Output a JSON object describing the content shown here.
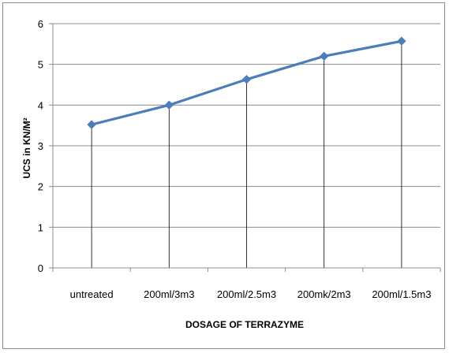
{
  "chart_data": {
    "type": "line",
    "categories": [
      "untreated",
      "200ml/3m3",
      "200ml/2.5m3",
      "200mk/2m3",
      "200ml/1.5m3"
    ],
    "series": [
      {
        "values": [
          3.52,
          4.0,
          4.63,
          5.2,
          5.57
        ]
      }
    ],
    "xlabel": "DOSAGE OF TERRAZYME",
    "ylabel": "UCS in KN/M²",
    "ylim": [
      0,
      6
    ],
    "yticks": [
      "0",
      "1",
      "2",
      "3",
      "4",
      "5",
      "6"
    ],
    "grid": "horizontal",
    "drop_lines": true,
    "markers": "diamond",
    "series_color": "#4a7ebb",
    "grid_color": "#8c8c8c",
    "legend": "none"
  }
}
